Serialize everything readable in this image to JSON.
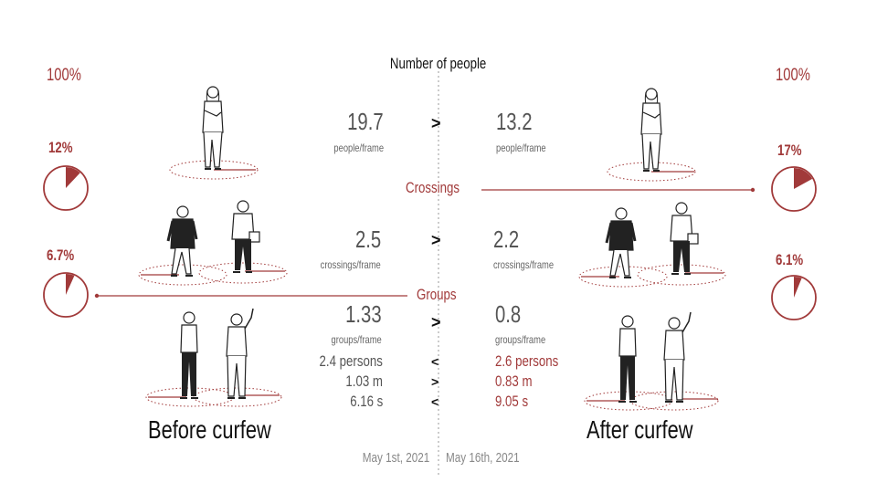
{
  "title": "Number of people",
  "sections": {
    "crossings": "Crossings",
    "groups": "Groups"
  },
  "before": {
    "caption": "Before curfew",
    "date": "May 1st, 2021",
    "people": {
      "value": "19.7",
      "unit": "people/frame"
    },
    "crossings": {
      "value": "2.5",
      "unit": "crossings/frame"
    },
    "groups": {
      "value": "1.33",
      "unit": "groups/frame"
    },
    "group_size": "2.4 persons",
    "distance": "1.03 m",
    "duration": "6.16 s",
    "total_pct": "100%",
    "crossing_pct": "12%",
    "group_pct": "6.7%",
    "crossing_fraction": 0.12,
    "group_fraction": 0.067
  },
  "after": {
    "caption": "After curfew",
    "date": "May 16th, 2021",
    "people": {
      "value": "13.2",
      "unit": "people/frame"
    },
    "crossings": {
      "value": "2.2",
      "unit": "crossings/frame"
    },
    "groups": {
      "value": "0.8",
      "unit": "groups/frame"
    },
    "group_size": "2.6 persons",
    "distance": "0.83 m",
    "duration": "9.05 s",
    "total_pct": "100%",
    "crossing_pct": "17%",
    "group_pct": "6.1%",
    "crossing_fraction": 0.17,
    "group_fraction": 0.061
  },
  "comparisons": {
    "people": ">",
    "crossings": ">",
    "groups": ">",
    "group_size": "<",
    "distance": ">",
    "duration": "<"
  },
  "colors": {
    "accent": "#a13a3a",
    "text": "#555555",
    "dark": "#111111"
  },
  "icons": [
    "standing-person-icon",
    "two-walking-people-icon",
    "two-standing-men-icon"
  ]
}
